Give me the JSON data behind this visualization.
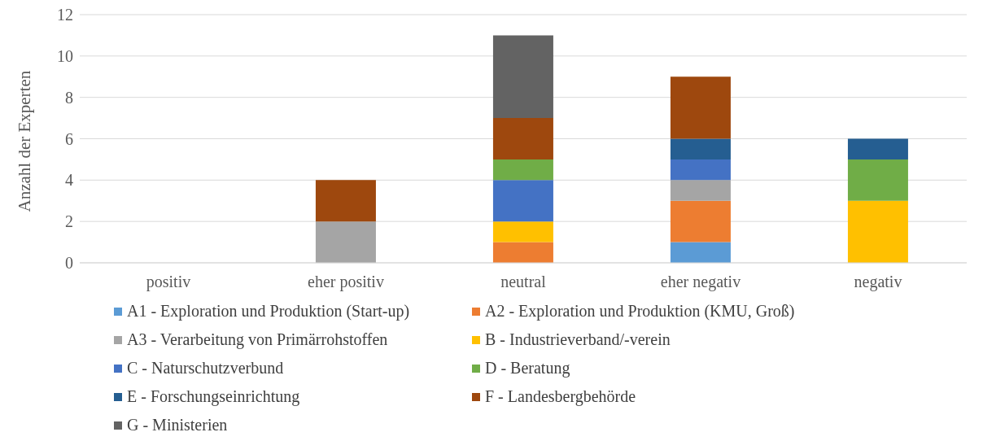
{
  "chart_data": {
    "type": "bar",
    "stacked": true,
    "ylabel": "Anzahl der Experten",
    "categories": [
      "positiv",
      "eher positiv",
      "neutral",
      "eher negativ",
      "negativ"
    ],
    "series": [
      {
        "name": "A1 - Exploration und Produktion (Start-up)",
        "color": "#5b9bd5",
        "values": [
          0,
          0,
          0,
          1,
          0
        ]
      },
      {
        "name": "A2 - Exploration und Produktion (KMU, Groß)",
        "color": "#ed7d31",
        "values": [
          0,
          0,
          1,
          2,
          0
        ]
      },
      {
        "name": "A3 - Verarbeitung von Primärrohstoffen",
        "color": "#a5a5a5",
        "values": [
          0,
          2,
          0,
          1,
          0
        ]
      },
      {
        "name": "B - Industrieverband/-verein",
        "color": "#ffc000",
        "values": [
          0,
          0,
          1,
          0,
          3
        ]
      },
      {
        "name": "C - Naturschutzverbund",
        "color": "#4472c4",
        "values": [
          0,
          0,
          2,
          1,
          0
        ]
      },
      {
        "name": "D - Beratung",
        "color": "#70ad47",
        "values": [
          0,
          0,
          1,
          0,
          2
        ]
      },
      {
        "name": "E - Forschungseinrichtung",
        "color": "#255e91",
        "values": [
          0,
          0,
          0,
          1,
          1
        ]
      },
      {
        "name": "F - Landesbergbehörde",
        "color": "#9e480e",
        "values": [
          0,
          2,
          2,
          3,
          0
        ]
      },
      {
        "name": "G - Ministerien",
        "color": "#636363",
        "values": [
          0,
          0,
          4,
          0,
          0
        ]
      }
    ],
    "ylim": [
      0,
      12
    ],
    "yticks": [
      0,
      2,
      4,
      6,
      8,
      10,
      12
    ],
    "grid": "y",
    "legend": "bottom"
  }
}
